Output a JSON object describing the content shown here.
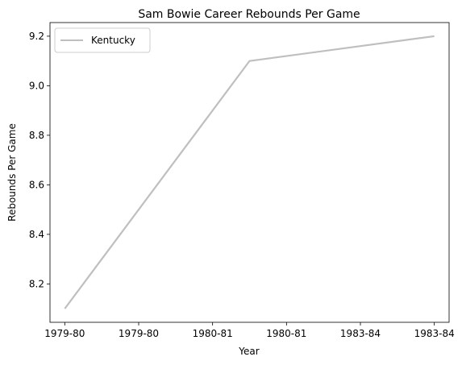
{
  "chart_data": {
    "type": "line",
    "title": "Sam Bowie Career Rebounds Per Game",
    "xlabel": "Year",
    "ylabel": "Rebounds Per Game",
    "x_ticks": [
      "1979-80",
      "1979-80",
      "1980-81",
      "1980-81",
      "1983-84",
      "1983-84"
    ],
    "x_range": [
      -0.2,
      5.2
    ],
    "ylim": [
      8.045,
      9.255
    ],
    "y_ticks": [
      8.2,
      8.4,
      8.6,
      8.8,
      9.0,
      9.2
    ],
    "y_tick_labels": [
      "8.2",
      "8.4",
      "8.6",
      "8.8",
      "9.0",
      "9.2"
    ],
    "series": [
      {
        "name": "Kentucky",
        "color": "#bfbfbf",
        "x": [
          0,
          2.5,
          5
        ],
        "x_labels": [
          "1979-80",
          "1980-81",
          "1983-84"
        ],
        "values": [
          8.1,
          9.1,
          9.2
        ]
      }
    ],
    "legend_position": "top-left",
    "grid": false
  }
}
